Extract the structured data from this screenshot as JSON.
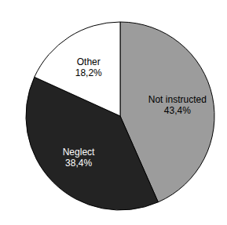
{
  "chart_data": {
    "type": "pie",
    "categories": [
      "Not instructed",
      "Neglect",
      "Other"
    ],
    "values": [
      43.4,
      38.4,
      18.2
    ],
    "value_labels": [
      "43,4%",
      "38,4%",
      "18,2%"
    ],
    "colors": [
      "#9c9c9c",
      "#232323",
      "#ffffff"
    ],
    "data_labels": true
  }
}
